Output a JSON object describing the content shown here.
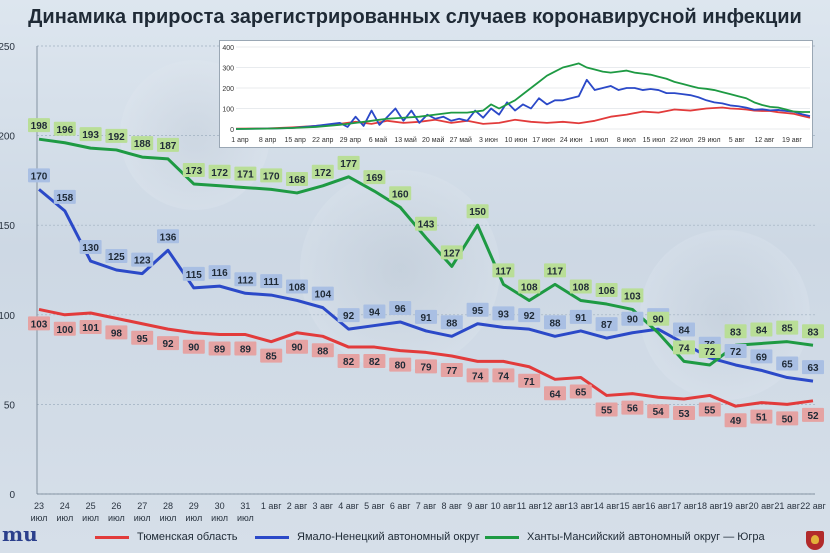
{
  "title": "Динамика прироста зарегистрированных случаев коронавирусной инфекции",
  "colors": {
    "tyumen": "#e23b3b",
    "yamal": "#2b49c8",
    "khmao": "#1e9a43",
    "tyumen_label_bg": "#e5a3a3",
    "yamal_label_bg": "#a9bfe3",
    "khmao_label_bg": "#b9de97"
  },
  "legend": [
    {
      "name": "Тюменская область",
      "color": "#e23b3b"
    },
    {
      "name": "Ямало-Ненецкий автономный округ",
      "color": "#2b49c8"
    },
    {
      "name": "Ханты-Мансийский автономный округ — Югра",
      "color": "#1e9a43"
    }
  ],
  "logo_text": "mu",
  "chart_data": [
    {
      "type": "line",
      "title": "Динамика прироста зарегистрированных случаев коронавирусной инфекции",
      "ylim": [
        0,
        250
      ],
      "yticks": [
        0,
        50,
        100,
        150,
        200,
        250
      ],
      "grid": true,
      "legend_position": "bottom",
      "categories": [
        [
          "23",
          "июл"
        ],
        [
          "24",
          "июл"
        ],
        [
          "25",
          "июл"
        ],
        [
          "26",
          "июл"
        ],
        [
          "27",
          "июл"
        ],
        [
          "28",
          "июл"
        ],
        [
          "29",
          "июл"
        ],
        [
          "30",
          "июл"
        ],
        [
          "31",
          "июл"
        ],
        [
          "1 авг",
          ""
        ],
        [
          "2 авг",
          ""
        ],
        [
          "3 авг",
          ""
        ],
        [
          "4 авг",
          ""
        ],
        [
          "5 авг",
          ""
        ],
        [
          "6 авг",
          ""
        ],
        [
          "7 авг",
          ""
        ],
        [
          "8 авг",
          ""
        ],
        [
          "9 авг",
          ""
        ],
        [
          "10 авг",
          ""
        ],
        [
          "11 авг",
          ""
        ],
        [
          "12 авг",
          ""
        ],
        [
          "13 авг",
          ""
        ],
        [
          "14 авг",
          ""
        ],
        [
          "15 авг",
          ""
        ],
        [
          "16 авг",
          ""
        ],
        [
          "17 авг",
          ""
        ],
        [
          "18 авг",
          ""
        ],
        [
          "19 авг",
          ""
        ],
        [
          "20 авг",
          ""
        ],
        [
          "21 авг",
          ""
        ],
        [
          "22 авг",
          ""
        ]
      ],
      "series": [
        {
          "name": "Тюменская область",
          "values": [
            103,
            100,
            101,
            98,
            95,
            92,
            90,
            89,
            89,
            85,
            90,
            88,
            82,
            82,
            80,
            79,
            77,
            74,
            74,
            71,
            64,
            65,
            55,
            56,
            54,
            53,
            55,
            49,
            51,
            50,
            52
          ]
        },
        {
          "name": "Ямало-Ненецкий автономный округ",
          "values": [
            170,
            158,
            130,
            125,
            123,
            136,
            115,
            116,
            112,
            111,
            108,
            104,
            92,
            94,
            96,
            91,
            88,
            95,
            93,
            92,
            88,
            91,
            87,
            90,
            92,
            84,
            76,
            72,
            69,
            65,
            63
          ]
        },
        {
          "name": "Ханты-Мансийский автономный округ — Югра",
          "values": [
            198,
            196,
            193,
            192,
            188,
            187,
            173,
            172,
            171,
            170,
            168,
            172,
            177,
            169,
            160,
            143,
            127,
            150,
            117,
            108,
            117,
            108,
            106,
            103,
            90,
            74,
            72,
            83,
            84,
            85,
            83
          ]
        }
      ]
    },
    {
      "type": "line",
      "ylim": [
        0,
        400
      ],
      "yticks": [
        0,
        100,
        200,
        300,
        400
      ],
      "xticks": [
        "1 апр",
        "8 апр",
        "15 апр",
        "22 апр",
        "29 апр",
        "6 май",
        "13 май",
        "20 май",
        "27 май",
        "3 июн",
        "10 июн",
        "17 июн",
        "24 июн",
        "1 июл",
        "8 июл",
        "15 июл",
        "22 июл",
        "29 июл",
        "5 авг",
        "12 авг",
        "19 авг"
      ],
      "x_days": [
        0,
        144
      ],
      "series": [
        {
          "name": "Тюменская область",
          "points": [
            [
              0,
              2
            ],
            [
              8,
              3
            ],
            [
              14,
              8
            ],
            [
              20,
              15
            ],
            [
              26,
              25
            ],
            [
              30,
              35
            ],
            [
              34,
              25
            ],
            [
              38,
              40
            ],
            [
              42,
              30
            ],
            [
              46,
              35
            ],
            [
              50,
              45
            ],
            [
              54,
              30
            ],
            [
              58,
              40
            ],
            [
              62,
              25
            ],
            [
              66,
              30
            ],
            [
              70,
              45
            ],
            [
              74,
              35
            ],
            [
              78,
              30
            ],
            [
              82,
              35
            ],
            [
              86,
              28
            ],
            [
              90,
              40
            ],
            [
              94,
              60
            ],
            [
              98,
              70
            ],
            [
              102,
              85
            ],
            [
              106,
              80
            ],
            [
              110,
              95
            ],
            [
              114,
              90
            ],
            [
              118,
              100
            ],
            [
              122,
              105
            ],
            [
              124,
              100
            ],
            [
              126,
              98
            ],
            [
              128,
              95
            ],
            [
              130,
              90
            ],
            [
              132,
              88
            ],
            [
              134,
              88
            ],
            [
              136,
              82
            ],
            [
              138,
              78
            ],
            [
              140,
              74
            ],
            [
              142,
              64
            ],
            [
              144,
              55
            ]
          ]
        },
        {
          "name": "Ямало-Ненецкий автономный округ",
          "points": [
            [
              0,
              0
            ],
            [
              8,
              2
            ],
            [
              14,
              5
            ],
            [
              20,
              15
            ],
            [
              26,
              30
            ],
            [
              28,
              10
            ],
            [
              30,
              60
            ],
            [
              32,
              15
            ],
            [
              34,
              90
            ],
            [
              36,
              20
            ],
            [
              38,
              60
            ],
            [
              40,
              100
            ],
            [
              42,
              40
            ],
            [
              44,
              90
            ],
            [
              46,
              30
            ],
            [
              48,
              70
            ],
            [
              50,
              50
            ],
            [
              52,
              60
            ],
            [
              54,
              40
            ],
            [
              56,
              50
            ],
            [
              58,
              40
            ],
            [
              60,
              90
            ],
            [
              62,
              55
            ],
            [
              64,
              100
            ],
            [
              66,
              70
            ],
            [
              68,
              130
            ],
            [
              70,
              90
            ],
            [
              72,
              120
            ],
            [
              74,
              100
            ],
            [
              76,
              150
            ],
            [
              78,
              120
            ],
            [
              80,
              140
            ],
            [
              82,
              140
            ],
            [
              84,
              150
            ],
            [
              86,
              160
            ],
            [
              88,
              240
            ],
            [
              90,
              190
            ],
            [
              92,
              200
            ],
            [
              94,
              210
            ],
            [
              96,
              190
            ],
            [
              98,
              200
            ],
            [
              100,
              200
            ],
            [
              102,
              190
            ],
            [
              104,
              195
            ],
            [
              106,
              190
            ],
            [
              108,
              175
            ],
            [
              110,
              175
            ],
            [
              112,
              170
            ],
            [
              114,
              165
            ],
            [
              116,
              155
            ],
            [
              118,
              140
            ],
            [
              120,
              130
            ],
            [
              122,
              125
            ],
            [
              124,
              115
            ],
            [
              126,
              111
            ],
            [
              128,
              104
            ],
            [
              130,
              94
            ],
            [
              132,
              96
            ],
            [
              134,
              91
            ],
            [
              136,
              93
            ],
            [
              138,
              88
            ],
            [
              140,
              84
            ],
            [
              142,
              72
            ],
            [
              144,
              63
            ]
          ]
        },
        {
          "name": "Ханты-Мансийский автономный округ — Югра",
          "points": [
            [
              0,
              0
            ],
            [
              8,
              2
            ],
            [
              14,
              5
            ],
            [
              20,
              10
            ],
            [
              26,
              20
            ],
            [
              30,
              30
            ],
            [
              34,
              40
            ],
            [
              38,
              50
            ],
            [
              42,
              55
            ],
            [
              46,
              60
            ],
            [
              50,
              70
            ],
            [
              54,
              80
            ],
            [
              58,
              80
            ],
            [
              62,
              90
            ],
            [
              64,
              120
            ],
            [
              66,
              100
            ],
            [
              68,
              120
            ],
            [
              70,
              140
            ],
            [
              72,
              170
            ],
            [
              74,
              200
            ],
            [
              76,
              230
            ],
            [
              78,
              260
            ],
            [
              80,
              280
            ],
            [
              82,
              300
            ],
            [
              84,
              310
            ],
            [
              86,
              320
            ],
            [
              88,
              300
            ],
            [
              90,
              290
            ],
            [
              92,
              280
            ],
            [
              94,
              275
            ],
            [
              96,
              280
            ],
            [
              98,
              285
            ],
            [
              100,
              275
            ],
            [
              102,
              270
            ],
            [
              104,
              265
            ],
            [
              106,
              255
            ],
            [
              108,
              245
            ],
            [
              110,
              230
            ],
            [
              112,
              220
            ],
            [
              114,
              210
            ],
            [
              116,
              200
            ],
            [
              118,
              196
            ],
            [
              120,
              190
            ],
            [
              122,
              180
            ],
            [
              124,
              170
            ],
            [
              126,
              160
            ],
            [
              128,
              150
            ],
            [
              130,
              130
            ],
            [
              132,
              117
            ],
            [
              134,
              108
            ],
            [
              136,
              105
            ],
            [
              138,
              95
            ],
            [
              140,
              85
            ],
            [
              142,
              83
            ],
            [
              144,
              83
            ]
          ]
        }
      ]
    }
  ]
}
